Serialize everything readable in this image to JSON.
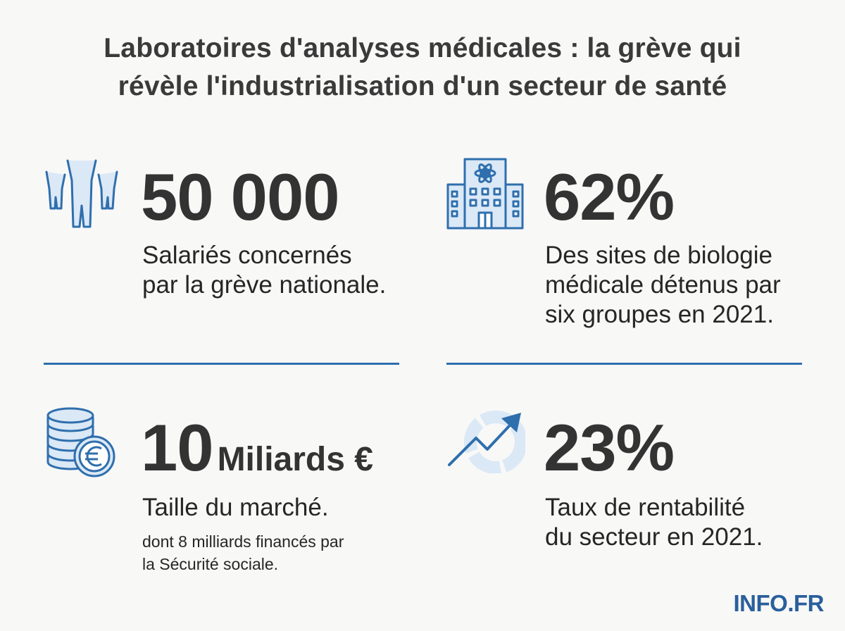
{
  "title": {
    "line1": "Laboratoires d'analyses médicales : la grève qui",
    "line2": "révèle l'industrialisation d'un secteur de santé"
  },
  "stats": {
    "employees": {
      "value": "50 000",
      "desc_line1": "Salariés concernés",
      "desc_line2": "par la grève nationale.",
      "icon": "people-icon"
    },
    "sites": {
      "value": "62%",
      "desc_line1": "Des sites de biologie",
      "desc_line2": "médicale détenus par",
      "desc_line3": "six groupes en 2021.",
      "icon": "laboratory-building-icon"
    },
    "market": {
      "value": "10",
      "unit": "Miliards €",
      "desc_line1": "Taille du marché.",
      "note_line1": "dont 8 milliards financés par",
      "note_line2": "la Sécurité sociale.",
      "icon": "coins-euro-icon"
    },
    "profitability": {
      "value": "23%",
      "desc_line1": "Taux de rentabilité",
      "desc_line2": "du secteur en 2021.",
      "icon": "growth-chart-icon"
    }
  },
  "brand": "INFO.FR",
  "colors": {
    "accent": "#2f6fad",
    "icon_fill": "#dbe8f6",
    "text": "#333333",
    "background": "#f8f8f7"
  }
}
